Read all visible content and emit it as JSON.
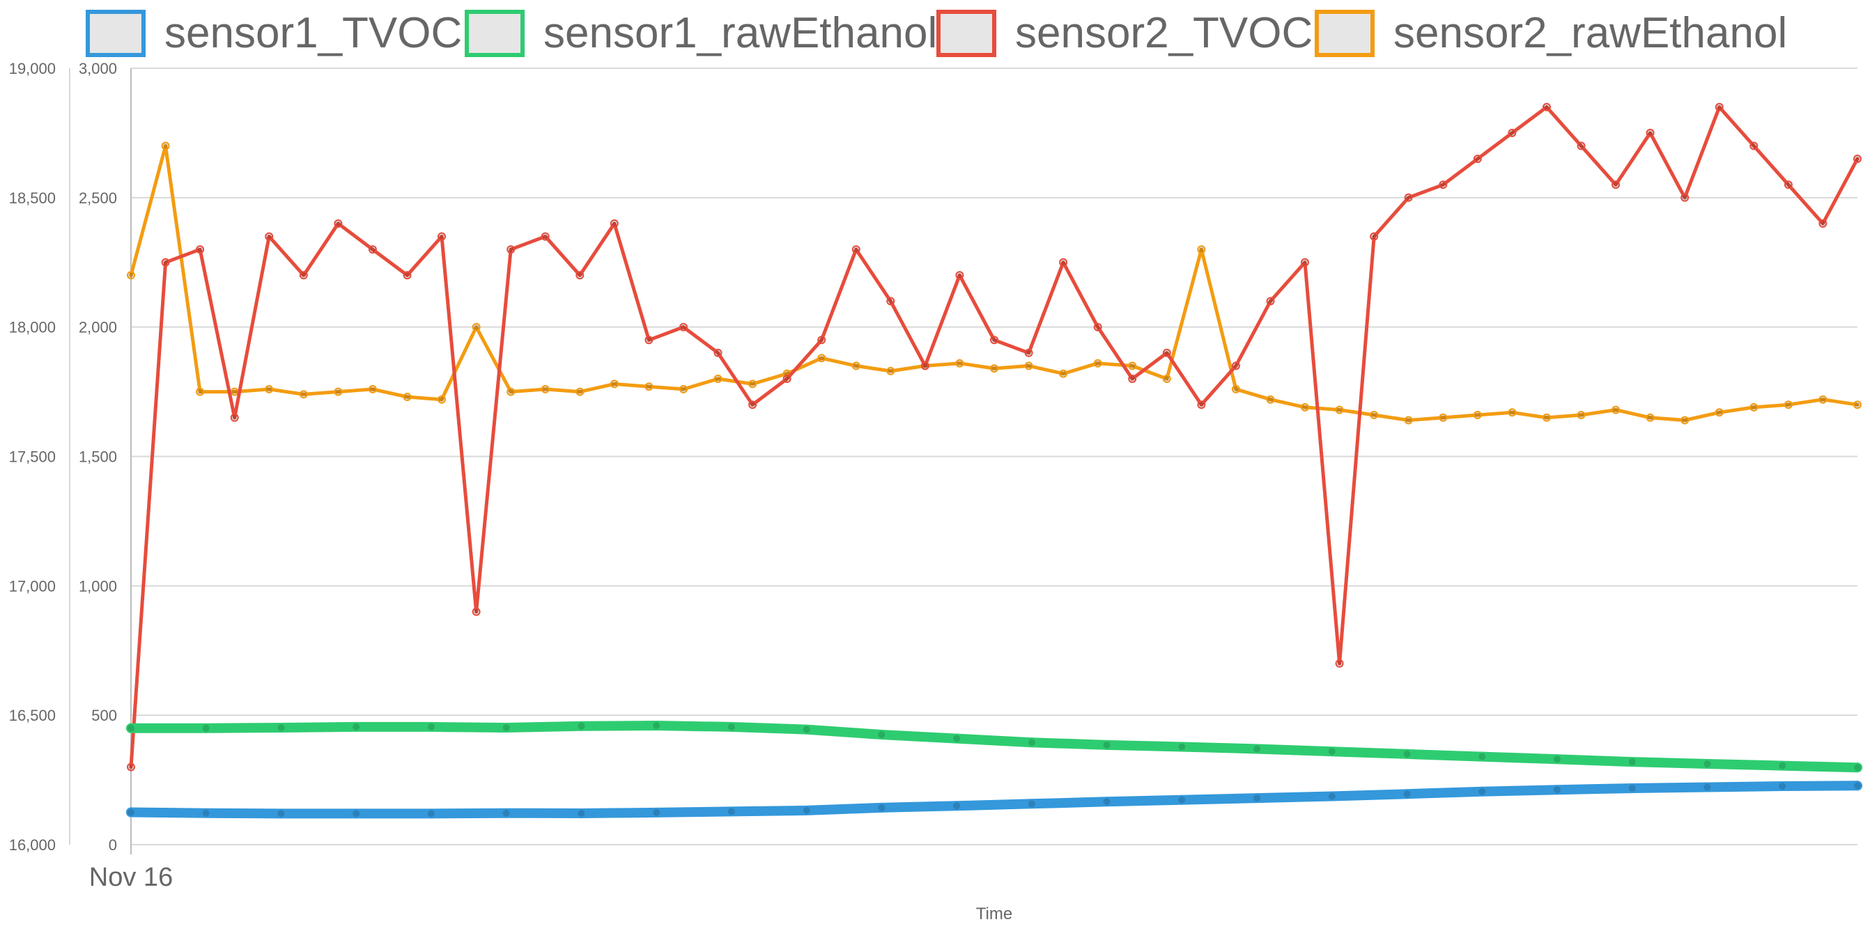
{
  "chart_data": {
    "type": "line",
    "xlabel": "Time",
    "x_tick_labels": [
      "Nov 16"
    ],
    "legend_position": "top",
    "grid": true,
    "left_axis": {
      "ticks": [
        16000,
        16500,
        17000,
        17500,
        18000,
        18500,
        19000
      ],
      "tick_labels": [
        "16,000",
        "16,500",
        "17,000",
        "17,500",
        "18,000",
        "18,500",
        "19,000"
      ],
      "ylim": [
        16000,
        19000
      ]
    },
    "right_axis": {
      "ticks": [
        0,
        500,
        1000,
        1500,
        2000,
        2500,
        3000
      ],
      "tick_labels": [
        "0",
        "500",
        "1,000",
        "1,500",
        "2,000",
        "2,500",
        "3,000"
      ],
      "ylim": [
        0,
        3000
      ]
    },
    "series": [
      {
        "name": "sensor1_TVOC",
        "color": "#3498db",
        "axis": "right",
        "values": [
          125,
          122,
          120,
          120,
          120,
          122,
          121,
          124,
          128,
          132,
          143,
          150,
          158,
          166,
          173,
          180,
          187,
          196,
          205,
          212,
          218,
          222,
          226,
          228
        ]
      },
      {
        "name": "sensor1_rawEthanol",
        "color": "#2ecc71",
        "axis": "left",
        "values": [
          16450,
          16450,
          16452,
          16455,
          16455,
          16452,
          16458,
          16460,
          16455,
          16445,
          16425,
          16410,
          16395,
          16385,
          16378,
          16370,
          16360,
          16350,
          16340,
          16330,
          16320,
          16312,
          16305,
          16298
        ]
      },
      {
        "name": "sensor2_TVOC",
        "color": "#e74c3c",
        "axis": "right",
        "values": [
          300,
          2250,
          2300,
          1650,
          2350,
          2200,
          2400,
          2300,
          2200,
          2350,
          900,
          2300,
          2350,
          2200,
          2400,
          1950,
          2000,
          1900,
          1700,
          1800,
          1950,
          2300,
          2100,
          1850,
          2200,
          1950,
          1900,
          2250,
          2000,
          1800,
          1900,
          1700,
          1850,
          2100,
          2250,
          700,
          2350,
          2500,
          2550,
          2650,
          2750,
          2850,
          2700,
          2550,
          2750,
          2500,
          2850,
          2700,
          2550,
          2400,
          2650
        ]
      },
      {
        "name": "sensor2_rawEthanol",
        "color": "#f39c12",
        "axis": "left",
        "values": [
          18200,
          18700,
          17750,
          17750,
          17760,
          17740,
          17750,
          17760,
          17730,
          17720,
          18000,
          17750,
          17760,
          17750,
          17780,
          17770,
          17760,
          17800,
          17780,
          17820,
          17880,
          17850,
          17830,
          17850,
          17860,
          17840,
          17850,
          17820,
          17860,
          17850,
          17800,
          18300,
          17760,
          17720,
          17690,
          17680,
          17660,
          17640,
          17650,
          17660,
          17670,
          17650,
          17660,
          17680,
          17650,
          17640,
          17670,
          17690,
          17700,
          17720,
          17700
        ]
      }
    ]
  }
}
